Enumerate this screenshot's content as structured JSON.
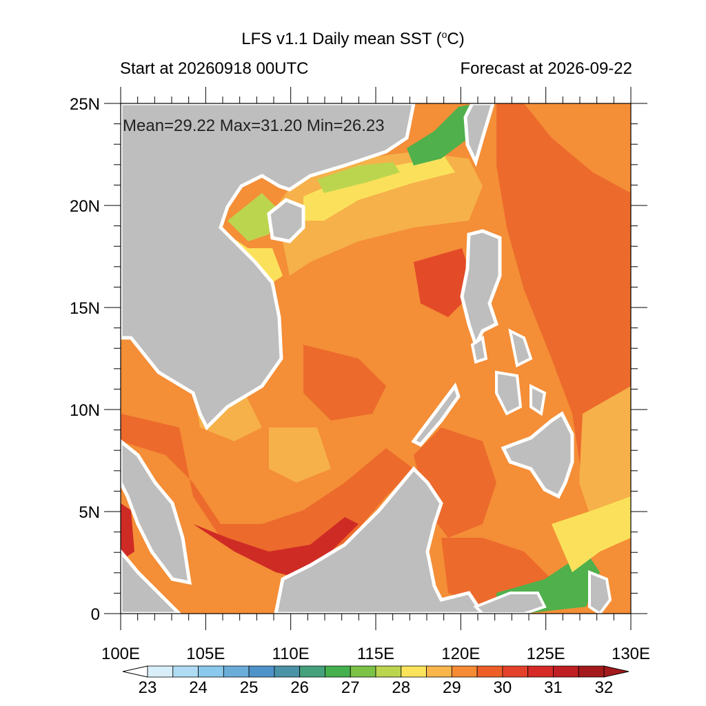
{
  "title": {
    "main": "LFS v1.1 Daily mean SST (",
    "sup": "o",
    "unit_tail": "C)",
    "start": "Start at 20260918 00UTC",
    "forecast": "Forecast at 2026-09-22"
  },
  "stats": "Mean=29.22  Max=31.20  Min=26.23",
  "axes": {
    "lat_ticks": [
      {
        "value": 25,
        "label": "25N"
      },
      {
        "value": 20,
        "label": "20N"
      },
      {
        "value": 15,
        "label": "15N"
      },
      {
        "value": 10,
        "label": "10N"
      },
      {
        "value": 5,
        "label": "5N"
      },
      {
        "value": 0,
        "label": "0"
      }
    ],
    "lon_ticks": [
      {
        "value": 100,
        "label": "100E"
      },
      {
        "value": 105,
        "label": "105E"
      },
      {
        "value": 110,
        "label": "110E"
      },
      {
        "value": 115,
        "label": "115E"
      },
      {
        "value": 120,
        "label": "120E"
      },
      {
        "value": 125,
        "label": "125E"
      },
      {
        "value": 130,
        "label": "130E"
      }
    ],
    "lon_range": [
      100,
      130
    ],
    "lat_range": [
      0,
      25
    ]
  },
  "colorbar": {
    "labels": [
      "23",
      "24",
      "25",
      "26",
      "27",
      "28",
      "29",
      "30",
      "31",
      "32"
    ],
    "colors": [
      "#ffffff",
      "#d8eef9",
      "#afdcf3",
      "#8ac9ec",
      "#6aadd9",
      "#4f93cb",
      "#4a93a6",
      "#44a17c",
      "#45b04e",
      "#7cc246",
      "#bcd54e",
      "#fbe35b",
      "#f8b64b",
      "#f68b33",
      "#ee5f28",
      "#e4412a",
      "#d52a25",
      "#bf1f22",
      "#a3191c",
      "#a3191c"
    ]
  },
  "colors": {
    "land": "#bebebe",
    "sst_29": "#f6b14a",
    "sst_29_5": "#f48e37",
    "sst_30": "#ec6a2c",
    "sst_30_5": "#e34b28",
    "sst_31": "#cf2b25",
    "sst_28": "#fbe15b",
    "sst_27_5": "#bcd54e",
    "sst_27": "#4fb04c"
  }
}
